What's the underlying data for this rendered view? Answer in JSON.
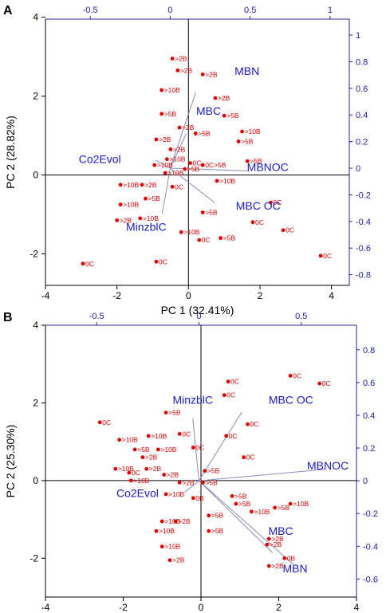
{
  "chart_data": [
    {
      "panel": "A",
      "type": "scatter",
      "xlabel": "PC 1 (32.41%)",
      "ylabel": "PC 2 (28.82%)",
      "xlim": [
        -4,
        4.5
      ],
      "ylim": [
        -2.8,
        3.95
      ],
      "xticks": [
        -4,
        -2,
        0,
        2,
        4
      ],
      "yticks": [
        -2,
        0,
        2,
        4
      ],
      "top_ticks": [
        -0.5,
        0.0,
        0.5,
        1.0
      ],
      "right_ticks": [
        -0.8,
        -0.6,
        -0.4,
        -0.2,
        0.0,
        0.2,
        0.4,
        0.6,
        0.8,
        1.0
      ],
      "points": [
        {
          "x": -0.45,
          "y": 2.95,
          "label": ">2B"
        },
        {
          "x": -0.3,
          "y": 2.65,
          "label": ">2B"
        },
        {
          "x": 0.4,
          "y": 2.55,
          "label": ">2B"
        },
        {
          "x": -0.75,
          "y": 2.15,
          "label": ">10B"
        },
        {
          "x": 0.75,
          "y": 1.95,
          "label": ">2B"
        },
        {
          "x": -0.75,
          "y": 1.55,
          "label": ">5B"
        },
        {
          "x": 1.0,
          "y": 1.5,
          "label": ">5B"
        },
        {
          "x": 0.2,
          "y": 1.05,
          "label": ">5B"
        },
        {
          "x": -0.25,
          "y": 1.2,
          "label": ">2B"
        },
        {
          "x": 1.5,
          "y": 1.1,
          "label": ">10B"
        },
        {
          "x": 1.4,
          "y": 0.85,
          "label": ">5B"
        },
        {
          "x": -0.5,
          "y": 0.65,
          "label": ">2B"
        },
        {
          "x": -0.9,
          "y": 0.9,
          "label": ">2B"
        },
        {
          "x": -0.6,
          "y": 0.4,
          "label": ">10B"
        },
        {
          "x": 1.65,
          "y": 0.35,
          "label": ">5B"
        },
        {
          "x": -0.95,
          "y": 0.25,
          "label": ">10B"
        },
        {
          "x": 0.05,
          "y": 0.3,
          "label": "0C"
        },
        {
          "x": 0.4,
          "y": 0.25,
          "label": "0C>5B"
        },
        {
          "x": -0.1,
          "y": 0.15,
          "label": ">5B"
        },
        {
          "x": -0.65,
          "y": 0.05,
          "label": ">10B"
        },
        {
          "x": -1.9,
          "y": -0.25,
          "label": ">10B"
        },
        {
          "x": -1.3,
          "y": -0.25,
          "label": ">2B"
        },
        {
          "x": -0.45,
          "y": -0.3,
          "label": "0C"
        },
        {
          "x": 0.8,
          "y": -0.15,
          "label": ">10B"
        },
        {
          "x": -1.2,
          "y": -0.6,
          "label": ">5B"
        },
        {
          "x": -1.9,
          "y": -0.75,
          "label": ">10B"
        },
        {
          "x": -1.35,
          "y": -1.1,
          "label": ">10B"
        },
        {
          "x": -2.0,
          "y": -1.15,
          "label": ">2B"
        },
        {
          "x": 2.3,
          "y": -0.7,
          "label": "0C"
        },
        {
          "x": 0.4,
          "y": -0.95,
          "label": ">5B"
        },
        {
          "x": 1.8,
          "y": -1.2,
          "label": "0C"
        },
        {
          "x": -0.2,
          "y": -1.45,
          "label": ">10B"
        },
        {
          "x": 0.9,
          "y": -1.6,
          "label": ">5B"
        },
        {
          "x": 0.3,
          "y": -1.65,
          "label": "0C"
        },
        {
          "x": 2.65,
          "y": -1.4,
          "label": "0C"
        },
        {
          "x": 3.7,
          "y": -2.05,
          "label": "0C"
        },
        {
          "x": -0.9,
          "y": -2.2,
          "label": "0C"
        },
        {
          "x": -2.95,
          "y": -2.25,
          "label": "0C"
        }
      ],
      "loadings": [
        {
          "name": "MBN",
          "x": 0.16,
          "y": 0.57,
          "lx": 0.48,
          "ly": 0.7
        },
        {
          "name": "MBC",
          "x": 0.1,
          "y": 0.26,
          "lx": 0.24,
          "ly": 0.4
        },
        {
          "name": "Co2Evol",
          "x": -0.09,
          "y": 0.06,
          "lx": -0.44,
          "ly": 0.04
        },
        {
          "name": "MBNOC",
          "x": 0.5,
          "y": -0.02,
          "lx": 0.61,
          "ly": -0.02
        },
        {
          "name": "MBC OC",
          "x": 0.28,
          "y": -0.26,
          "lx": 0.55,
          "ly": -0.31
        },
        {
          "name": "MinzblC",
          "x": -0.05,
          "y": -0.34,
          "lx": -0.15,
          "ly": -0.47
        }
      ],
      "loading_axis": {
        "xlim": [
          -0.78,
          1.12
        ],
        "ylim": [
          -0.88,
          1.12
        ]
      }
    },
    {
      "panel": "B",
      "type": "scatter",
      "xlabel": "PC 1 (33.98%)",
      "ylabel": "PC 2 (25.30%)",
      "xlim": [
        -4,
        4
      ],
      "ylim": [
        -3.0,
        4.0
      ],
      "xticks": [
        -4,
        -2,
        0,
        2,
        4
      ],
      "yticks": [
        -2,
        0,
        2,
        4
      ],
      "top_ticks": [
        -0.5,
        0.0,
        0.5
      ],
      "right_ticks": [
        -0.6,
        -0.4,
        -0.2,
        0.0,
        0.2,
        0.4,
        0.6,
        0.8
      ],
      "points": [
        {
          "x": 0.7,
          "y": 2.55,
          "label": "0C"
        },
        {
          "x": 2.3,
          "y": 2.7,
          "label": "0C"
        },
        {
          "x": 3.05,
          "y": 2.5,
          "label": "0C"
        },
        {
          "x": 0.6,
          "y": 2.2,
          "label": "0C"
        },
        {
          "x": -0.9,
          "y": 1.75,
          "label": ">5B"
        },
        {
          "x": -2.6,
          "y": 1.5,
          "label": "0C"
        },
        {
          "x": 1.2,
          "y": 1.45,
          "label": "0C"
        },
        {
          "x": -1.35,
          "y": 1.15,
          "label": ">10B"
        },
        {
          "x": -0.55,
          "y": 1.2,
          "label": "0C"
        },
        {
          "x": -2.1,
          "y": 1.05,
          "label": ">10B"
        },
        {
          "x": 0.65,
          "y": 1.15,
          "label": "0C"
        },
        {
          "x": -1.7,
          "y": 0.8,
          "label": ">5B"
        },
        {
          "x": -1.1,
          "y": 0.8,
          "label": ">10B"
        },
        {
          "x": -0.2,
          "y": 0.85,
          "label": "0C"
        },
        {
          "x": -1.5,
          "y": 0.6,
          "label": ">2B"
        },
        {
          "x": -2.2,
          "y": 0.3,
          "label": ">10B"
        },
        {
          "x": -1.4,
          "y": 0.3,
          "label": ">2B"
        },
        {
          "x": 1.1,
          "y": 0.6,
          "label": "0C"
        },
        {
          "x": -1.85,
          "y": 0.2,
          "label": "0C"
        },
        {
          "x": -0.95,
          "y": 0.15,
          "label": ">2B"
        },
        {
          "x": 0.1,
          "y": 0.25,
          "label": ">5B"
        },
        {
          "x": -1.8,
          "y": 0.0,
          "label": ">10B"
        },
        {
          "x": -0.55,
          "y": -0.05,
          "label": ">2B"
        },
        {
          "x": 0.05,
          "y": -0.05,
          "label": ">5B"
        },
        {
          "x": -0.9,
          "y": -0.35,
          "label": ">10B"
        },
        {
          "x": -0.2,
          "y": -0.45,
          "label": "0B"
        },
        {
          "x": 0.8,
          "y": -0.4,
          "label": ">5B"
        },
        {
          "x": 0.9,
          "y": -0.6,
          "label": ">5B"
        },
        {
          "x": 1.3,
          "y": -0.8,
          "label": ">10B"
        },
        {
          "x": 1.9,
          "y": -0.7,
          "label": ">5B"
        },
        {
          "x": 2.3,
          "y": -0.6,
          "label": ">10B"
        },
        {
          "x": 0.2,
          "y": -0.9,
          "label": ">5B"
        },
        {
          "x": -1.0,
          "y": -1.05,
          "label": ">10B"
        },
        {
          "x": -0.65,
          "y": -1.05,
          "label": ">2B"
        },
        {
          "x": -1.15,
          "y": -1.3,
          "label": ">10B"
        },
        {
          "x": 0.2,
          "y": -1.3,
          "label": ">5B"
        },
        {
          "x": -1.0,
          "y": -1.7,
          "label": ">10B"
        },
        {
          "x": 1.75,
          "y": -1.5,
          "label": ">2B"
        },
        {
          "x": 1.7,
          "y": -1.65,
          "label": ">2B"
        },
        {
          "x": -0.8,
          "y": -2.05,
          "label": ">2B"
        },
        {
          "x": 1.75,
          "y": -2.2,
          "label": ">2B"
        },
        {
          "x": 2.15,
          "y": -2.0,
          "label": "0B"
        }
      ],
      "loadings": [
        {
          "name": "MinzblC",
          "x": -0.03,
          "y": 0.38,
          "lx": -0.03,
          "ly": 0.47
        },
        {
          "name": "MBC OC",
          "x": 0.21,
          "y": 0.42,
          "lx": 0.45,
          "ly": 0.47
        },
        {
          "name": "MBNOC",
          "x": 0.62,
          "y": 0.07,
          "lx": 0.63,
          "ly": 0.07
        },
        {
          "name": "Co2Evol",
          "x": -0.07,
          "y": -0.07,
          "lx": -0.3,
          "ly": -0.1
        },
        {
          "name": "MBC",
          "x": 0.36,
          "y": -0.44,
          "lx": 0.4,
          "ly": -0.33
        },
        {
          "name": "MBN",
          "x": 0.46,
          "y": -0.51,
          "lx": 0.47,
          "ly": -0.56
        }
      ],
      "loading_axis": {
        "xlim": [
          -0.75,
          0.77
        ],
        "ylim": [
          -0.71,
          0.95
        ]
      }
    }
  ]
}
